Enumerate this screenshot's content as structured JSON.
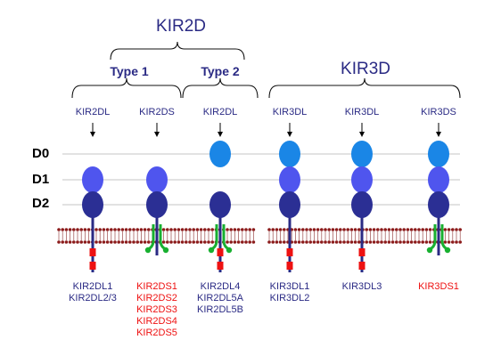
{
  "headers": {
    "kir2d": "KIR2D",
    "type1": "Type 1",
    "type2": "Type 2",
    "kir3d": "KIR3D"
  },
  "domain_labels": {
    "d0": "D0",
    "d1": "D1",
    "d2": "D2"
  },
  "columns": [
    {
      "receptor": "KIR2DL",
      "domains": [
        "D1",
        "D2"
      ],
      "tail": "long",
      "adaptor": false,
      "members": [
        "KIR2DL1",
        "KIR2DL2/3"
      ],
      "member_color": "#2a2a84"
    },
    {
      "receptor": "KIR2DS",
      "domains": [
        "D1",
        "D2"
      ],
      "tail": "short",
      "adaptor": true,
      "members": [
        "KIR2DS1",
        "KIR2DS2",
        "KIR2DS3",
        "KIR2DS4",
        "KIR2DS5"
      ],
      "member_color": "#ee1111"
    },
    {
      "receptor": "KIR2DL",
      "domains": [
        "D0",
        "D2"
      ],
      "tail": "long",
      "adaptor": true,
      "members": [
        "KIR2DL4",
        "KIR2DL5A",
        "KIR2DL5B"
      ],
      "member_color": "#2a2a84"
    },
    {
      "receptor": "KIR3DL",
      "domains": [
        "D0",
        "D1",
        "D2"
      ],
      "tail": "long",
      "adaptor": false,
      "members": [
        "KIR3DL1",
        "KIR3DL2"
      ],
      "member_color": "#2a2a84"
    },
    {
      "receptor": "KIR3DL",
      "domains": [
        "D0",
        "D1",
        "D2"
      ],
      "tail": "long",
      "adaptor": false,
      "members": [
        "KIR3DL3"
      ],
      "member_color": "#2a2a84"
    },
    {
      "receptor": "KIR3DS",
      "domains": [
        "D0",
        "D1",
        "D2"
      ],
      "tail": "short",
      "adaptor": true,
      "members": [
        "KIR3DS1"
      ],
      "member_color": "#ee1111"
    }
  ],
  "colors": {
    "d0": "#1a86e6",
    "d1": "#4f55ee",
    "d2": "#2b2f94",
    "text": "#2a2a84",
    "activating": "#ee1111",
    "itim": "#ee1111",
    "adaptor": "#18b030",
    "lipid_head": "#8b1a1a"
  }
}
